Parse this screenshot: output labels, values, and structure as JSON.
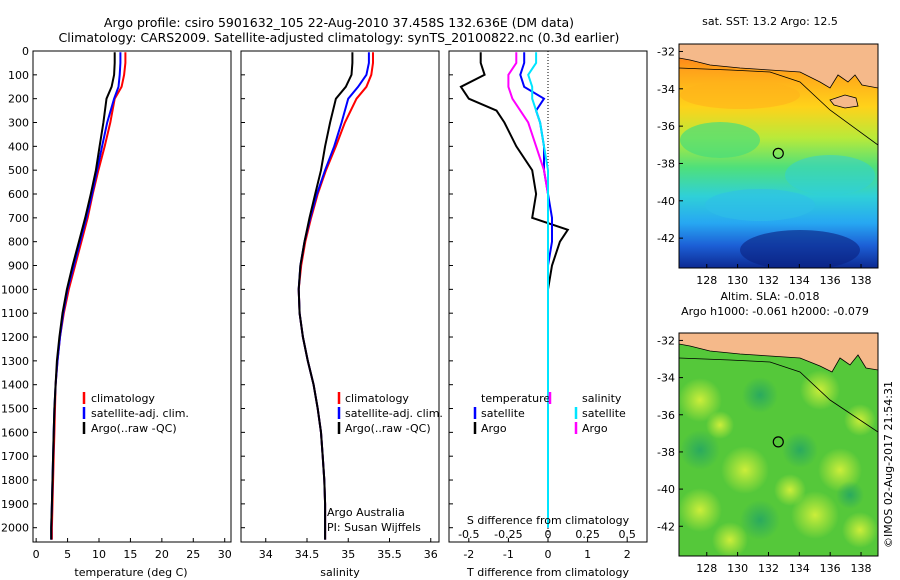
{
  "header": {
    "title_line1": "Argo profile: csiro 5901632_105 22-Aug-2010 37.458S 132.636E (DM data)",
    "title_line2": "Climatology: CARS2009. Satellite-adjusted climatology: synTS_20100822.nc (0.3d earlier)"
  },
  "colors": {
    "climatology": "#ff0000",
    "satellite": "#0000ff",
    "argo": "#000000",
    "salinity_diff": "#ff00ff",
    "salinity_sat": "#00e5ff",
    "land": "#f5b98a"
  },
  "legend": {
    "climatology": "climatology",
    "satellite_adj": "satellite-adj. clim.",
    "argo_raw": "Argo(..raw -QC)",
    "temperature": "temperature",
    "salinity": "salinity",
    "satellite": "satellite",
    "argo": "Argo"
  },
  "credits": {
    "line1": "Argo Australia",
    "line2": "PI: Susan Wijffels"
  },
  "maps": {
    "sst_title": "sat. SST: 13.2 Argo: 12.5",
    "sla_title1": "Altim. SLA: -0.018",
    "sla_title2": "Argo h1000: -0.061 h2000: -0.079",
    "lon_ticks": [
      "128",
      "130",
      "132",
      "134",
      "136",
      "138"
    ],
    "lat_ticks": [
      "-32",
      "-34",
      "-36",
      "-38",
      "-40",
      "-42"
    ],
    "profile_lon": 132.636,
    "profile_lat": -37.458
  },
  "side_stamp": "©IMOS 02-Aug-2017 21:54:31",
  "chart_data": [
    {
      "type": "line",
      "xlabel": "temperature (deg C)",
      "ylabel": "",
      "xlim": [
        -0.5,
        31
      ],
      "ylim": [
        2060,
        0
      ],
      "x_ticks": [
        "0",
        "5",
        "10",
        "15",
        "20",
        "25",
        "30"
      ],
      "y_ticks": [
        "0",
        "100",
        "200",
        "300",
        "400",
        "500",
        "600",
        "700",
        "800",
        "900",
        "1000",
        "1100",
        "1200",
        "1300",
        "1400",
        "1500",
        "1600",
        "1700",
        "1800",
        "1900",
        "2000"
      ],
      "series": [
        {
          "name": "climatology",
          "depth": [
            5,
            50,
            100,
            150,
            200,
            300,
            400,
            500,
            600,
            700,
            800,
            900,
            1000,
            1100,
            1200,
            1300,
            1400,
            1500,
            1600,
            1700,
            1800,
            1900,
            2000,
            2050
          ],
          "values": [
            14.2,
            14.2,
            14.0,
            13.6,
            12.5,
            11.8,
            10.9,
            9.9,
            9.0,
            8.2,
            7.2,
            6.2,
            5.2,
            4.4,
            3.8,
            3.4,
            3.1,
            3.0,
            2.9,
            2.8,
            2.7,
            2.6,
            2.5,
            2.5
          ]
        },
        {
          "name": "satellite-adj. clim.",
          "depth": [
            5,
            50,
            100,
            150,
            200,
            300,
            400,
            500,
            600,
            700,
            800,
            900,
            1000,
            1100,
            1200,
            1300,
            1400,
            1500,
            1600,
            1700,
            1800,
            1900,
            2000,
            2050
          ],
          "values": [
            13.4,
            13.4,
            13.3,
            13.1,
            12.4,
            11.3,
            10.5,
            9.7,
            8.9,
            8.0,
            7.0,
            6.0,
            5.0,
            4.3,
            3.8,
            3.4,
            3.1,
            2.9,
            2.8,
            2.7,
            2.6,
            2.5,
            2.4,
            2.4
          ]
        },
        {
          "name": "Argo(..raw -QC)",
          "depth": [
            5,
            50,
            100,
            150,
            200,
            300,
            400,
            500,
            600,
            700,
            800,
            900,
            1000,
            1100,
            1200,
            1300,
            1400,
            1500,
            1600,
            1700,
            1800,
            1900,
            2000,
            2050
          ],
          "values": [
            12.5,
            12.5,
            12.4,
            12.0,
            11.2,
            10.7,
            10.1,
            9.5,
            8.7,
            7.8,
            6.8,
            5.8,
            4.9,
            4.2,
            3.7,
            3.3,
            3.1,
            2.9,
            2.8,
            2.7,
            2.6,
            2.5,
            2.4,
            2.4
          ]
        }
      ]
    },
    {
      "type": "line",
      "xlabel": "salinity",
      "ylabel": "",
      "xlim": [
        33.7,
        36.1
      ],
      "ylim": [
        2060,
        0
      ],
      "x_ticks": [
        "34",
        "34.5",
        "35",
        "35.5",
        "36"
      ],
      "series": [
        {
          "name": "climatology",
          "depth": [
            5,
            50,
            100,
            150,
            200,
            300,
            400,
            500,
            600,
            700,
            800,
            900,
            1000,
            1100,
            1200,
            1300,
            1400,
            1500,
            1600,
            1700,
            1800,
            1900,
            2000,
            2050
          ],
          "values": [
            35.3,
            35.3,
            35.28,
            35.22,
            35.1,
            34.96,
            34.85,
            34.73,
            34.63,
            34.55,
            34.48,
            34.43,
            34.4,
            34.41,
            34.45,
            34.51,
            34.58,
            34.63,
            34.67,
            34.69,
            34.71,
            34.72,
            34.72,
            34.72
          ]
        },
        {
          "name": "satellite-adj. clim.",
          "depth": [
            5,
            50,
            100,
            150,
            200,
            300,
            400,
            500,
            600,
            700,
            800,
            900,
            1000,
            1100,
            1200,
            1300,
            1400,
            1500,
            1600,
            1700,
            1800,
            1900,
            2000,
            2050
          ],
          "values": [
            35.25,
            35.25,
            35.22,
            35.12,
            35.0,
            34.92,
            34.83,
            34.72,
            34.62,
            34.54,
            34.47,
            34.42,
            34.4,
            34.41,
            34.45,
            34.51,
            34.58,
            34.63,
            34.67,
            34.69,
            34.71,
            34.72,
            34.72,
            34.72
          ]
        },
        {
          "name": "Argo(..raw -QC)",
          "depth": [
            5,
            50,
            100,
            150,
            200,
            300,
            400,
            500,
            600,
            700,
            800,
            900,
            1000,
            1100,
            1200,
            1300,
            1400,
            1500,
            1600,
            1700,
            1800,
            1900,
            2000,
            2050
          ],
          "values": [
            35.05,
            35.05,
            35.04,
            34.97,
            34.85,
            34.78,
            34.72,
            34.67,
            34.6,
            34.53,
            34.47,
            34.42,
            34.4,
            34.41,
            34.45,
            34.51,
            34.58,
            34.63,
            34.67,
            34.69,
            34.71,
            34.72,
            34.72,
            34.72
          ]
        }
      ]
    },
    {
      "type": "line",
      "xlabel": "T difference from climatology",
      "x2label": "S difference from climatology",
      "ylabel": "",
      "xlim": [
        -2.5,
        2.5
      ],
      "ylim": [
        2060,
        0
      ],
      "x_ticks": [
        "-2",
        "-1",
        "0",
        "1",
        "2"
      ],
      "x2_ticks": [
        "-0.5",
        "-0.25",
        "0",
        "0.25",
        "0.5"
      ],
      "series": [
        {
          "name": "temperature Argo",
          "depth": [
            5,
            50,
            100,
            150,
            200,
            250,
            300,
            400,
            500,
            600,
            700,
            750,
            800,
            900,
            1000,
            1200,
            1400,
            1600
          ],
          "values": [
            -1.7,
            -1.7,
            -1.6,
            -2.2,
            -2.0,
            -1.3,
            -1.1,
            -0.8,
            -0.4,
            -0.3,
            -0.4,
            0.5,
            0.3,
            0.1,
            0.0,
            0.0,
            0.0,
            0.0
          ]
        },
        {
          "name": "temperature satellite",
          "depth": [
            5,
            50,
            100,
            150,
            200,
            250,
            300,
            400,
            500,
            600,
            700,
            800,
            900,
            1000,
            1200,
            1400,
            1600
          ],
          "values": [
            -0.6,
            -0.6,
            -0.7,
            -0.6,
            -0.1,
            -0.3,
            -0.2,
            -0.1,
            -0.1,
            0.0,
            0.1,
            0.1,
            0.0,
            0.0,
            0.0,
            0.0,
            0.0
          ]
        },
        {
          "name": "salinity Argo",
          "depth": [
            5,
            50,
            100,
            150,
            200,
            300,
            400,
            500,
            600,
            700,
            800,
            900,
            1000,
            1200,
            1400,
            1600,
            1800,
            2000
          ],
          "values": [
            -0.8,
            -0.8,
            -1.0,
            -1.0,
            -0.9,
            -0.5,
            -0.3,
            -0.1,
            0.0,
            0.0,
            0.0,
            0.0,
            0.0,
            0.0,
            0.0,
            0.0,
            0.0,
            0.0
          ]
        },
        {
          "name": "salinity satellite",
          "depth": [
            5,
            50,
            100,
            150,
            200,
            300,
            400,
            500,
            600,
            700,
            800,
            900,
            1000,
            1200,
            1400,
            1600,
            1800,
            2000
          ],
          "values": [
            -0.3,
            -0.3,
            -0.5,
            -0.4,
            -0.4,
            -0.2,
            -0.1,
            0.0,
            0.0,
            0.0,
            0.0,
            0.0,
            0.0,
            0.0,
            0.0,
            0.0,
            0.0,
            0.0
          ]
        }
      ]
    }
  ]
}
